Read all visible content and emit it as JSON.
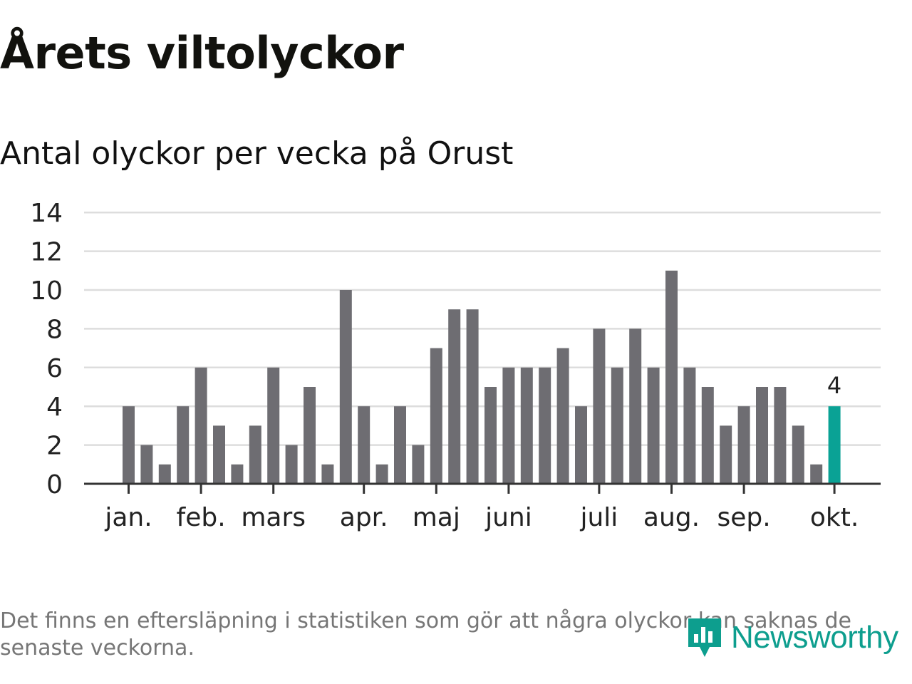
{
  "title": "Årets viltolyckor",
  "subtitle": "Antal olyckor per vecka på Orust",
  "footnote": "Det finns en eftersläpning i statistiken som gör att några olyckor kan saknas de senaste veckorna.",
  "logo": {
    "text": "Newsworthy",
    "icon": "bar-chart-logo-icon"
  },
  "colors": {
    "bar": "#6e6d72",
    "highlight": "#0aa295",
    "grid": "#dddddd",
    "axis": "#333333",
    "text": "#222222",
    "brand": "#0d9e8e"
  },
  "chart_data": {
    "type": "bar",
    "title": "Antal olyckor per vecka på Orust",
    "xlabel": "",
    "ylabel": "",
    "ylim": [
      0,
      14
    ],
    "yticks": [
      "0",
      "2",
      "4",
      "6",
      "8",
      "10",
      "12",
      "14"
    ],
    "values": [
      4,
      2,
      1,
      4,
      6,
      3,
      1,
      3,
      6,
      2,
      5,
      1,
      10,
      4,
      1,
      4,
      2,
      7,
      9,
      9,
      5,
      6,
      6,
      6,
      7,
      4,
      8,
      6,
      8,
      6,
      11,
      6,
      5,
      3,
      4,
      5,
      5,
      3,
      1,
      4
    ],
    "month_labels": [
      {
        "label": "jan.",
        "week_index": 0
      },
      {
        "label": "feb.",
        "week_index": 4
      },
      {
        "label": "mars",
        "week_index": 8
      },
      {
        "label": "apr.",
        "week_index": 13
      },
      {
        "label": "maj",
        "week_index": 17
      },
      {
        "label": "juni",
        "week_index": 21
      },
      {
        "label": "juli",
        "week_index": 26
      },
      {
        "label": "aug.",
        "week_index": 30
      },
      {
        "label": "sep.",
        "week_index": 34
      },
      {
        "label": "okt.",
        "week_index": 39
      }
    ],
    "highlight_index": 39,
    "highlight_label": "4",
    "grid": true,
    "legend": "none"
  }
}
